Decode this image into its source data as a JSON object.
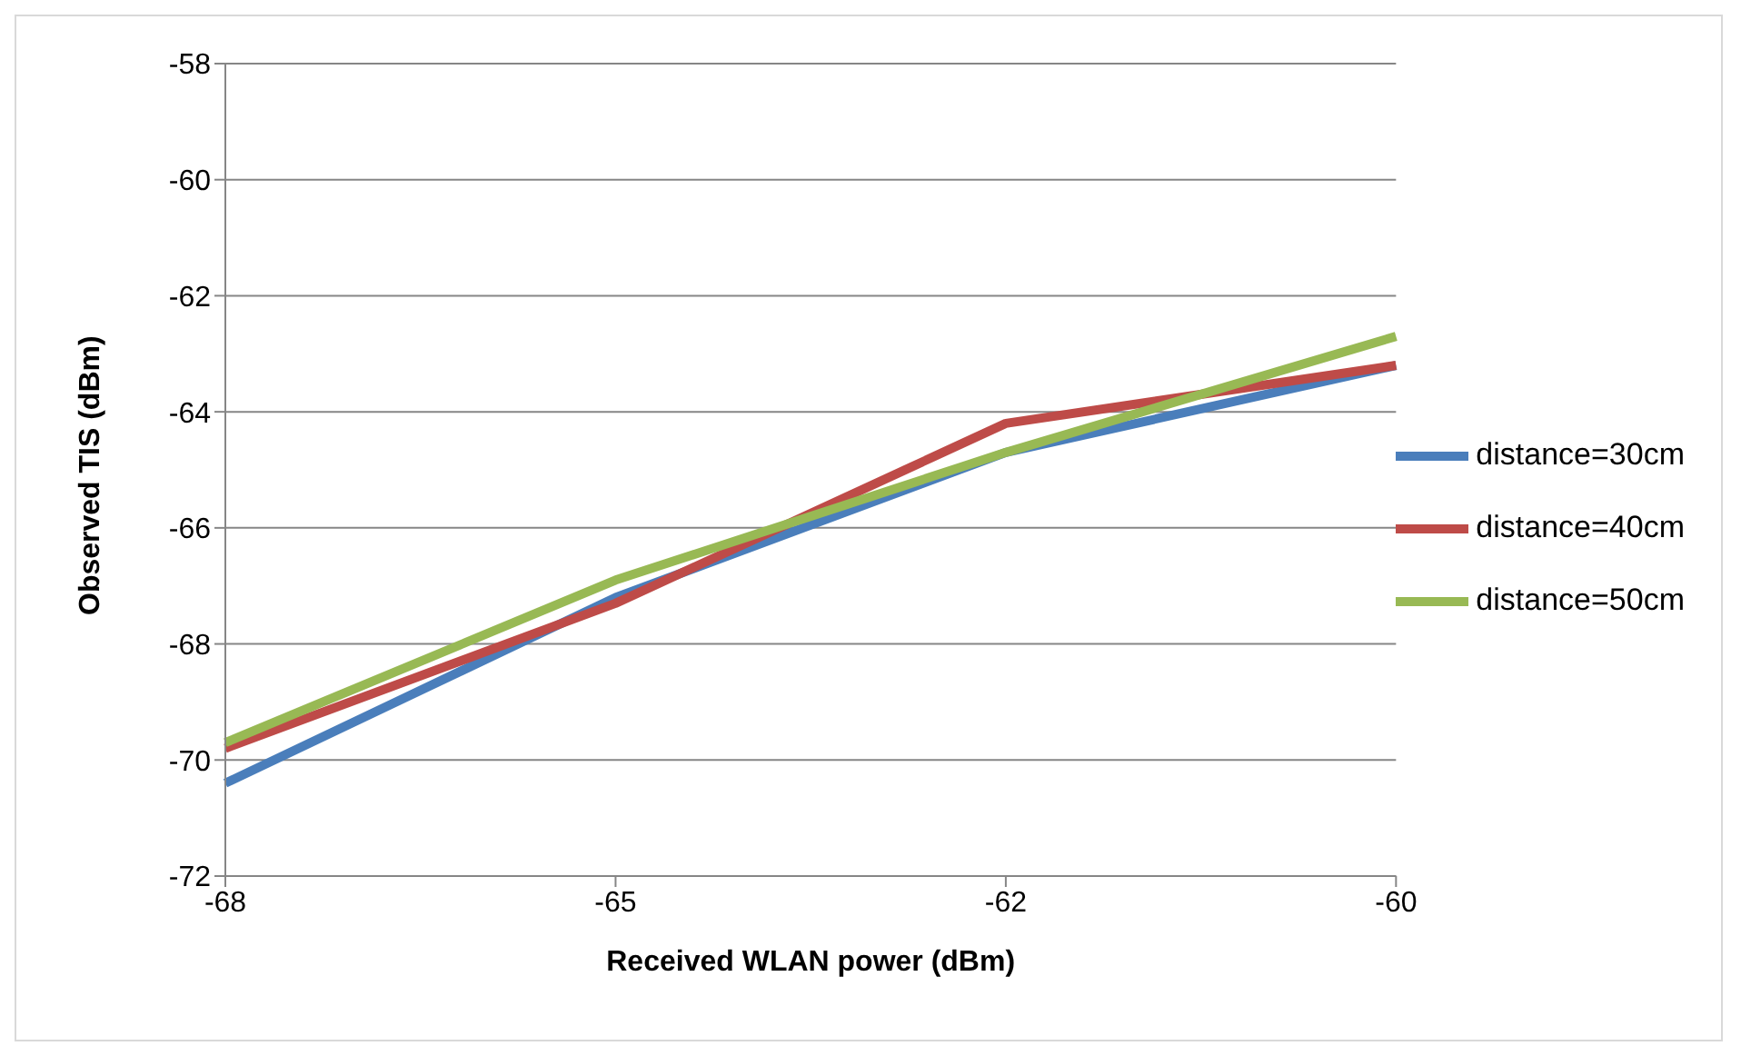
{
  "chart_data": {
    "type": "line",
    "xlabel": "Received WLAN power (dBm)",
    "ylabel": "Observed TIS (dBm)",
    "categories": [
      "-68",
      "-65",
      "-62",
      "-60"
    ],
    "series": [
      {
        "name": "distance=30cm",
        "color": "#4a7ebb",
        "values": [
          -70.4,
          -67.2,
          -64.7,
          -63.2
        ]
      },
      {
        "name": "distance=40cm",
        "color": "#be4b48",
        "values": [
          -69.8,
          -67.3,
          -64.2,
          -63.2
        ]
      },
      {
        "name": "distance=50cm",
        "color": "#98b954",
        "values": [
          -69.7,
          -66.9,
          -64.7,
          -62.7
        ]
      }
    ],
    "ylim": [
      -72,
      -58
    ],
    "yticks": [
      -72,
      -70,
      -68,
      -66,
      -64,
      -62,
      -60,
      -58
    ],
    "grid": "y",
    "legend": "right",
    "marker": "none",
    "line_style": "solid"
  }
}
